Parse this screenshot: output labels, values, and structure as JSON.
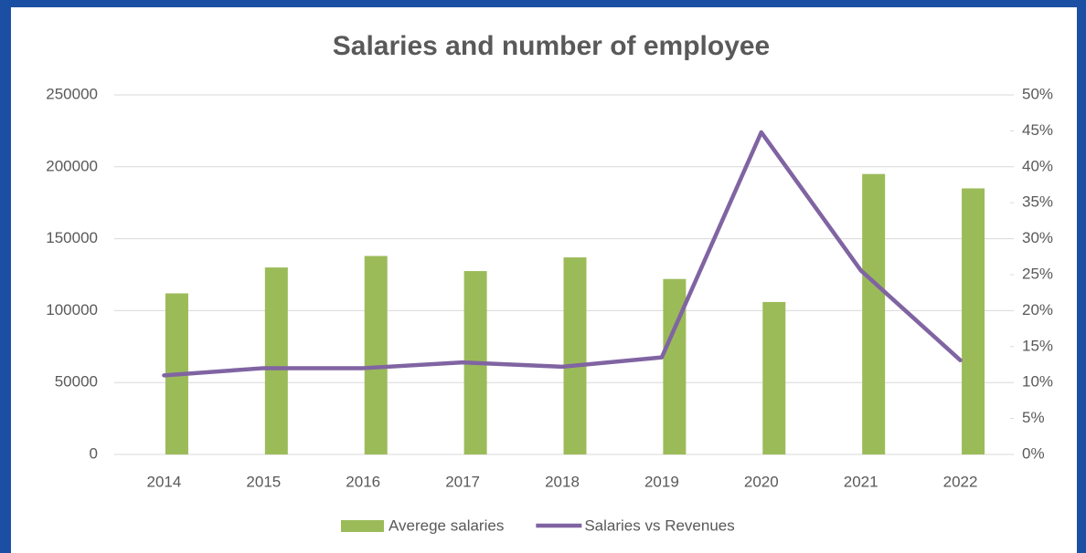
{
  "chart_data": {
    "type": "bar-line",
    "title": "Salaries and number of employee",
    "categories": [
      "2014",
      "2015",
      "2016",
      "2017",
      "2018",
      "2019",
      "2020",
      "2021",
      "2022"
    ],
    "series": [
      {
        "name": "Averege salaries",
        "type": "bar",
        "color": "#9bbb59",
        "values": [
          112000,
          130000,
          138000,
          127500,
          137000,
          122000,
          106000,
          195000,
          185000
        ]
      },
      {
        "name": "Salaries vs Revenues",
        "type": "line",
        "axis": "y2",
        "color": "#8064a2",
        "values": [
          11,
          12,
          12,
          12.8,
          12.2,
          13.5,
          44.8,
          25.6,
          13.1
        ]
      }
    ],
    "ylim": [
      0,
      250000
    ],
    "yticks": [
      0,
      50000,
      100000,
      150000,
      200000,
      250000
    ],
    "y2lim": [
      0,
      50
    ],
    "y2ticks": [
      {
        "value": 0,
        "label": "0%"
      },
      {
        "value": 5,
        "label": "5%"
      },
      {
        "value": 10,
        "label": "10%"
      },
      {
        "value": 15,
        "label": "15%"
      },
      {
        "value": 20,
        "label": "20%"
      },
      {
        "value": 25,
        "label": "25%"
      },
      {
        "value": 30,
        "label": "30%"
      },
      {
        "value": 35,
        "label": "35%"
      },
      {
        "value": 40,
        "label": "40%"
      },
      {
        "value": 45,
        "label": "45%"
      },
      {
        "value": 50,
        "label": "50%"
      }
    ],
    "grid": true,
    "legend": "bottom"
  }
}
